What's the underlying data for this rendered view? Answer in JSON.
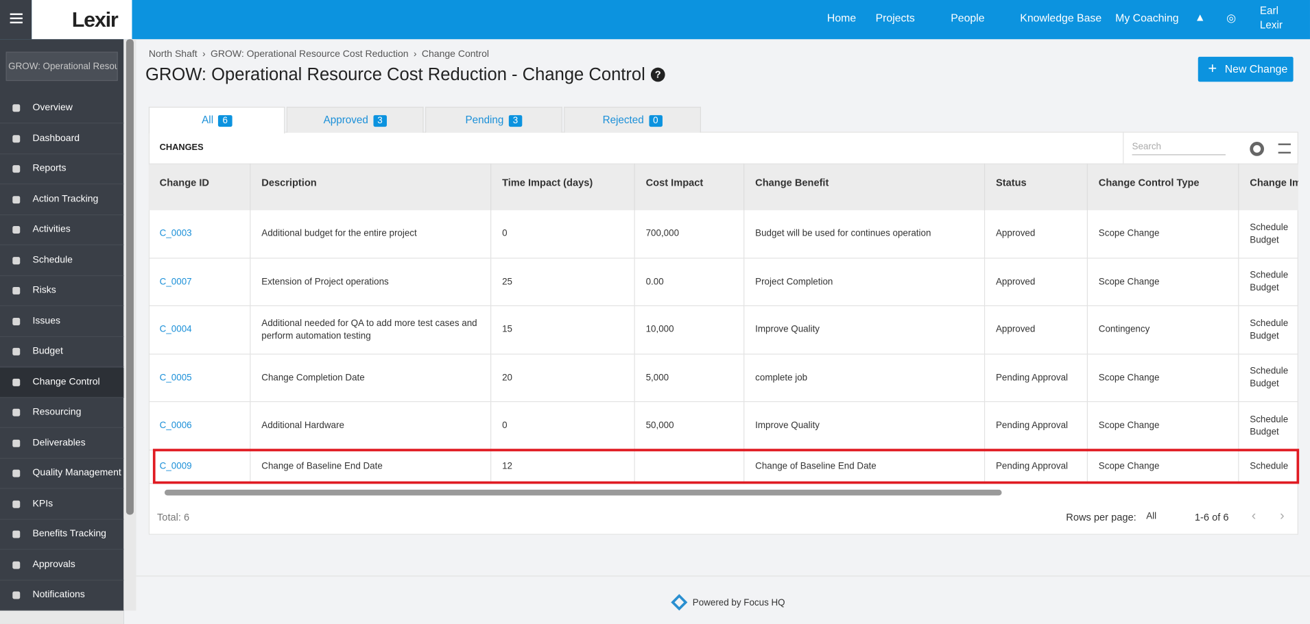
{
  "header": {
    "logo": "Lexir",
    "nav": [
      "Home",
      "Projects",
      "People",
      "Knowledge Base",
      "My Coaching"
    ],
    "user": [
      "Earl",
      "Lexir"
    ]
  },
  "sidebar": {
    "search": "GROW: Operational Resourc",
    "items": [
      "Overview",
      "Dashboard",
      "Reports",
      "Action Tracking",
      "Activities",
      "Schedule",
      "Risks",
      "Issues",
      "Budget",
      "Change Control",
      "Resourcing",
      "Deliverables",
      "Quality Management",
      "KPIs",
      "Benefits Tracking",
      "Approvals",
      "Notifications"
    ],
    "active": "Change Control"
  },
  "breadcrumb": [
    "North Shaft",
    "GROW: Operational Resource Cost Reduction",
    "Change Control"
  ],
  "title": "GROW: Operational Resource Cost Reduction - Change Control",
  "button": "New Change",
  "tabs": [
    {
      "label": "All",
      "count": 6
    },
    {
      "label": "Approved",
      "count": 3
    },
    {
      "label": "Pending",
      "count": 3
    },
    {
      "label": "Rejected",
      "count": 0
    }
  ],
  "table": {
    "heading": "CHANGES",
    "search": "Search",
    "columns": [
      "Change ID",
      "Description",
      "Time Impact (days)",
      "Cost Impact",
      "Change Benefit",
      "Status",
      "Change Control Type",
      "Change Im"
    ],
    "rows": [
      [
        "C_0003",
        "Additional budget for the entire project",
        "0",
        "700,000",
        "Budget will be used for continues operation",
        "Approved",
        "Scope Change",
        "Schedule Budget"
      ],
      [
        "C_0007",
        "Extension of Project operations",
        "25",
        "0.00",
        "Project Completion",
        "Approved",
        "Scope Change",
        "Schedule Budget"
      ],
      [
        "C_0004",
        "Additional needed for QA to add more test cases and perform automation testing",
        "15",
        "10,000",
        "Improve Quality",
        "Approved",
        "Contingency",
        "Schedule Budget"
      ],
      [
        "C_0005",
        "Change Completion Date",
        "20",
        "5,000",
        "complete job",
        "Pending Approval",
        "Scope Change",
        "Schedule Budget"
      ],
      [
        "C_0006",
        "Additional Hardware",
        "0",
        "50,000",
        "Improve Quality",
        "Pending Approval",
        "Scope Change",
        "Schedule Budget"
      ],
      [
        "C_0009",
        "Change of Baseline End Date",
        "12",
        null,
        "Change of Baseline End Date",
        "Pending Approval",
        "Scope Change",
        "Schedule"
      ]
    ],
    "total": "Total: 6",
    "rows_per_page_label": "Rows per page:",
    "rows_per_page": "All",
    "range": "1-6 of 6"
  },
  "footer": "Powered by Focus HQ"
}
